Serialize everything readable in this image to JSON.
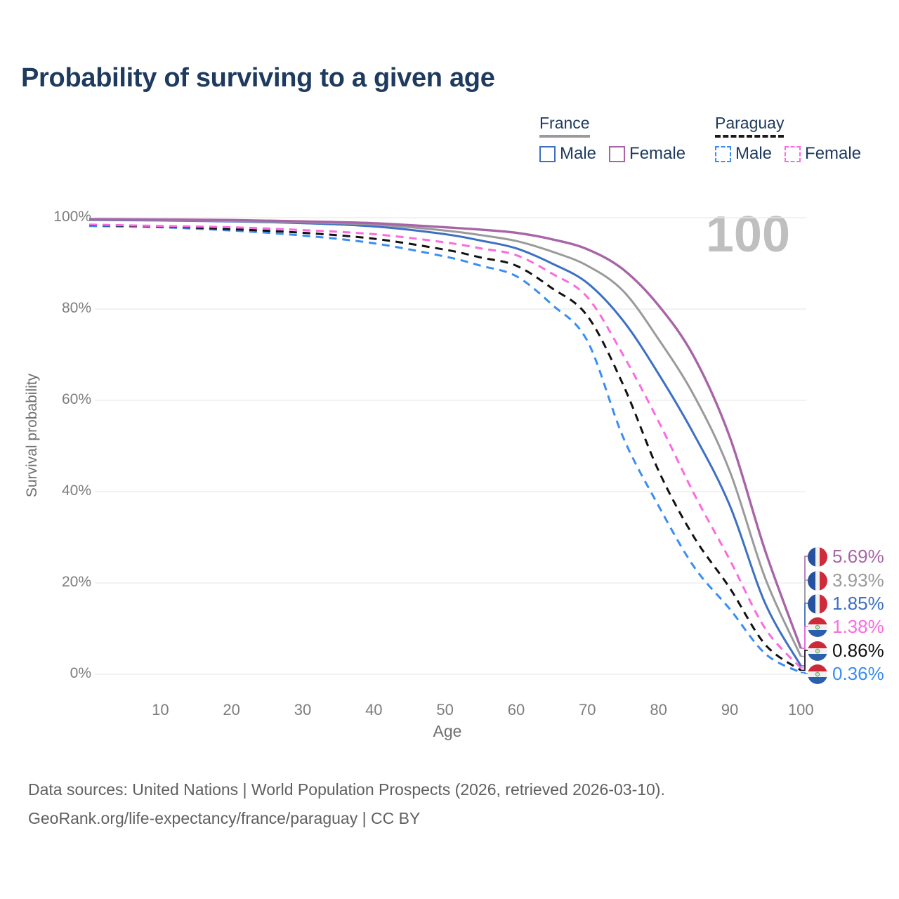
{
  "page": {
    "title": "Probability of surviving to a given age",
    "watermark": "100",
    "footer_line1": "Data sources: United Nations | World Population Prospects (2026, retrieved 2026-03-10).",
    "footer_line2": "GeoRank.org/life-expectancy/france/paraguay | CC BY"
  },
  "legend": {
    "groups": [
      {
        "title": "France",
        "underline_style": "solid",
        "underline_color": "#9a9a9a",
        "items": [
          {
            "label": "Male",
            "color": "#3d6fc4",
            "style": "solid"
          },
          {
            "label": "Female",
            "color": "#a765a7",
            "style": "solid"
          }
        ]
      },
      {
        "title": "Paraguay",
        "underline_style": "dashed",
        "underline_color": "#1a1a1a",
        "items": [
          {
            "label": "Male",
            "color": "#3b8df2",
            "style": "dashed"
          },
          {
            "label": "Female",
            "color": "#fb6bdf",
            "style": "dashed"
          }
        ]
      }
    ]
  },
  "chart_data": {
    "type": "line",
    "title": "Probability of surviving to a given age",
    "xlabel": "Age",
    "ylabel": "Survival probability",
    "xlim": [
      0,
      100
    ],
    "ylim": [
      0,
      100
    ],
    "grid": true,
    "legend_position": "top-right",
    "x_ticks": [
      10,
      20,
      30,
      40,
      50,
      60,
      70,
      80,
      90,
      100
    ],
    "y_ticks": [
      0,
      20,
      40,
      60,
      80,
      100
    ],
    "y_tick_labels": [
      "0%",
      "20%",
      "40%",
      "60%",
      "80%",
      "100%"
    ],
    "x": [
      0,
      10,
      20,
      30,
      40,
      50,
      55,
      60,
      65,
      70,
      75,
      80,
      85,
      90,
      95,
      100
    ],
    "series": [
      {
        "name": "France Female",
        "country": "france",
        "sex": "female",
        "color": "#a765a7",
        "dash": "solid",
        "values": [
          99.7,
          99.6,
          99.5,
          99.2,
          98.8,
          97.9,
          97.4,
          96.7,
          95.3,
          93.1,
          88.7,
          80.8,
          69.5,
          52.0,
          27.0,
          5.69
        ],
        "end_label": "5.69%"
      },
      {
        "name": "France Both sexes",
        "country": "france",
        "sex": "both",
        "color": "#9a9a9a",
        "dash": "solid",
        "values": [
          99.6,
          99.5,
          99.3,
          99.0,
          98.5,
          97.2,
          96.2,
          94.9,
          92.6,
          89.5,
          84.0,
          73.4,
          61.0,
          44.5,
          21.0,
          3.93
        ],
        "end_label": "3.93%"
      },
      {
        "name": "France Male",
        "country": "france",
        "sex": "male",
        "color": "#3d6fc4",
        "dash": "solid",
        "values": [
          99.5,
          99.4,
          99.2,
          98.8,
          98.1,
          96.4,
          95.0,
          93.3,
          90.0,
          85.7,
          77.5,
          65.8,
          52.5,
          37.0,
          15.5,
          1.85
        ],
        "end_label": "1.85%"
      },
      {
        "name": "Paraguay Female",
        "country": "paraguay",
        "sex": "female",
        "color": "#fb6bdf",
        "dash": "dashed",
        "values": [
          98.5,
          98.2,
          97.9,
          97.3,
          96.4,
          94.6,
          93.3,
          91.8,
          87.8,
          82.6,
          70.0,
          55.4,
          39.5,
          25.1,
          10.0,
          1.38
        ],
        "end_label": "1.38%"
      },
      {
        "name": "Paraguay Both sexes",
        "country": "paraguay",
        "sex": "both",
        "color": "#111111",
        "dash": "dashed",
        "values": [
          98.4,
          98.1,
          97.5,
          96.7,
          95.4,
          93.0,
          91.3,
          89.5,
          84.6,
          78.5,
          63.5,
          44.6,
          30.0,
          18.9,
          6.5,
          0.86
        ],
        "end_label": "0.86%"
      },
      {
        "name": "Paraguay Male",
        "country": "paraguay",
        "sex": "male",
        "color": "#3b8df2",
        "dash": "dashed",
        "values": [
          98.2,
          97.9,
          97.2,
          96.1,
          94.4,
          91.5,
          89.5,
          87.2,
          81.0,
          73.0,
          52.0,
          36.9,
          23.5,
          14.3,
          4.5,
          0.36
        ],
        "end_label": "0.36%"
      }
    ],
    "end_labels": [
      {
        "value": "5.69%",
        "flag": "france",
        "color": "#a765a7"
      },
      {
        "value": "3.93%",
        "flag": "france",
        "color": "#9a9a9a"
      },
      {
        "value": "1.85%",
        "flag": "france",
        "color": "#3d6fc4"
      },
      {
        "value": "1.38%",
        "flag": "paraguay",
        "color": "#fb6bdf"
      },
      {
        "value": "0.86%",
        "flag": "paraguay",
        "color": "#111111"
      },
      {
        "value": "0.36%",
        "flag": "paraguay",
        "color": "#3b8df2"
      }
    ]
  }
}
